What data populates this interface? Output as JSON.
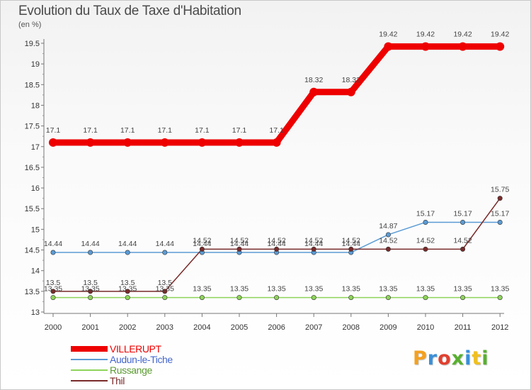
{
  "header": {
    "title": "Evolution du Taux de Taxe d'Habitation",
    "subtitle": "(en %)"
  },
  "logo": {
    "text": "Proxiti",
    "letter_colors": [
      "#f4a020",
      "#3a8fd8",
      "#e04030",
      "#58b030",
      "#3a8fd8",
      "#f0c020",
      "#58b030"
    ]
  },
  "chart_data": {
    "type": "line",
    "title": "Evolution du Taux de Taxe d'Habitation",
    "subtitle": "(en %)",
    "xlabel": "",
    "ylabel": "",
    "x": [
      "2000",
      "2001",
      "2002",
      "2003",
      "2004",
      "2005",
      "2006",
      "2007",
      "2008",
      "2009",
      "2010",
      "2011",
      "2012"
    ],
    "ylim": [
      13,
      19.5
    ],
    "yticks": [
      "13",
      "13.5",
      "14",
      "14.5",
      "15",
      "15.5",
      "16",
      "16.5",
      "17",
      "17.5",
      "18",
      "18.5",
      "19",
      "19.5"
    ],
    "grid": false,
    "legend_position": "bottom-left",
    "series": [
      {
        "name": "VILLERUPT",
        "color": "#ee0000",
        "thick": true,
        "values": [
          17.1,
          17.1,
          17.1,
          17.1,
          17.1,
          17.1,
          17.1,
          18.32,
          18.32,
          19.42,
          19.42,
          19.42,
          19.42
        ],
        "labels": [
          "17.1",
          "17.1",
          "17.1",
          "17.1",
          "17.1",
          "17.1",
          "17.1",
          "18.32",
          "18.32",
          "19.42",
          "19.42",
          "19.42",
          "19.42"
        ]
      },
      {
        "name": "Audun-le-Tiche",
        "color": "#5b9bd5",
        "legend_text_color": "#4466cc",
        "values": [
          14.44,
          14.44,
          14.44,
          14.44,
          14.44,
          14.44,
          14.44,
          14.44,
          14.44,
          14.87,
          15.17,
          15.17,
          15.17
        ],
        "labels": [
          "14.44",
          "14.44",
          "14.44",
          "14.44",
          "14.44",
          "14.44",
          "14.44",
          "14.44",
          "14.44",
          "14.87",
          "15.17",
          "15.17",
          "15.17"
        ]
      },
      {
        "name": "Russange",
        "color": "#8ed45a",
        "legend_text_color": "#5a9a30",
        "values": [
          13.35,
          13.35,
          13.35,
          13.35,
          13.35,
          13.35,
          13.35,
          13.35,
          13.35,
          13.35,
          13.35,
          13.35,
          13.35
        ],
        "labels": [
          "13.35",
          "13.35",
          "13.35",
          "13.35",
          "13.35",
          "13.35",
          "13.35",
          "13.35",
          "13.35",
          "13.35",
          "13.35",
          "13.35",
          "13.35"
        ]
      },
      {
        "name": "Thil",
        "color": "#7a2a2a",
        "legend_text_color": "#7a2a2a",
        "values": [
          13.5,
          13.5,
          13.5,
          13.5,
          14.52,
          14.52,
          14.52,
          14.52,
          14.52,
          14.52,
          14.52,
          14.52,
          15.75
        ],
        "labels": [
          "13.5",
          "13.5",
          "13.5",
          "13.5",
          "14.52",
          "14.52",
          "14.52",
          "14.52",
          "14.52",
          "14.52",
          "14.52",
          "14.52",
          "15.75"
        ]
      }
    ]
  }
}
